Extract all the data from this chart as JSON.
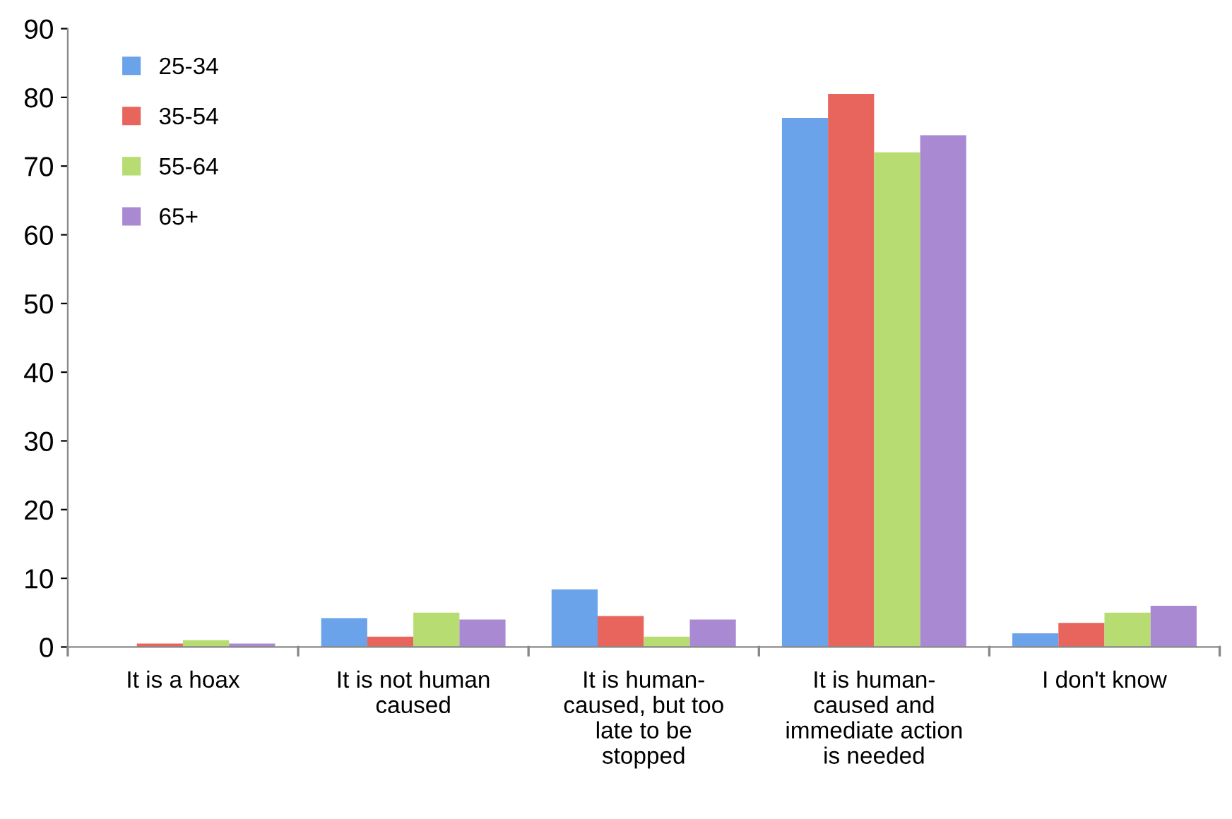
{
  "chart_data": {
    "type": "bar",
    "categories": [
      "It is a hoax",
      "It is not human caused",
      "It is human-caused, but too late to be stopped",
      "It is human-caused and immediate action is needed",
      "I don't know"
    ],
    "series": [
      {
        "name": "25-34",
        "color": "#6aa3ea",
        "values": [
          0,
          4.2,
          8.4,
          77,
          2
        ]
      },
      {
        "name": "35-54",
        "color": "#e8655e",
        "values": [
          0.5,
          1.5,
          4.5,
          80.5,
          3.5
        ]
      },
      {
        "name": "55-64",
        "color": "#b6dc72",
        "values": [
          1,
          5,
          1.5,
          72,
          5
        ]
      },
      {
        "name": "65+",
        "color": "#a98ad2",
        "values": [
          0.5,
          4,
          4,
          74.5,
          6
        ]
      }
    ],
    "ylim": [
      0,
      90
    ],
    "yticks": [
      0,
      10,
      20,
      30,
      40,
      50,
      60,
      70,
      80,
      90
    ],
    "grid": false,
    "legend": "top left"
  }
}
